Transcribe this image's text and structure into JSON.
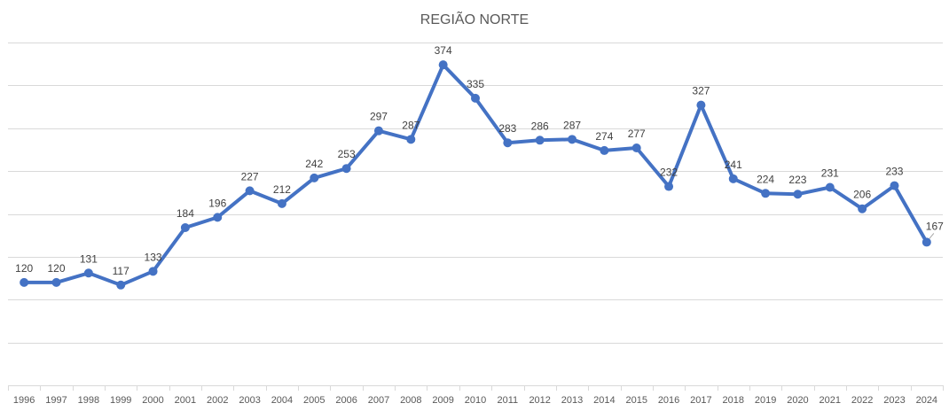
{
  "chart_data": {
    "type": "line",
    "title": "REGIÃO NORTE",
    "xlabel": "",
    "ylabel": "",
    "categories": [
      "1996",
      "1997",
      "1998",
      "1999",
      "2000",
      "2001",
      "2002",
      "2003",
      "2004",
      "2005",
      "2006",
      "2007",
      "2008",
      "2009",
      "2010",
      "2011",
      "2012",
      "2013",
      "2014",
      "2015",
      "2016",
      "2017",
      "2018",
      "2019",
      "2020",
      "2021",
      "2022",
      "2023",
      "2024"
    ],
    "series": [
      {
        "values": [
          120,
          120,
          131,
          117,
          133,
          184,
          196,
          227,
          212,
          242,
          253,
          297,
          287,
          374,
          335,
          283,
          286,
          287,
          274,
          277,
          232,
          327,
          241,
          224,
          223,
          231,
          206,
          233,
          167
        ],
        "color": "#4472c4"
      }
    ],
    "ylim": [
      0,
      400
    ],
    "y_gridlines": [
      50,
      100,
      150,
      200,
      250,
      300,
      350,
      400
    ],
    "grid": true,
    "data_labels": true,
    "y_tick_labels": false,
    "legend": "none"
  }
}
